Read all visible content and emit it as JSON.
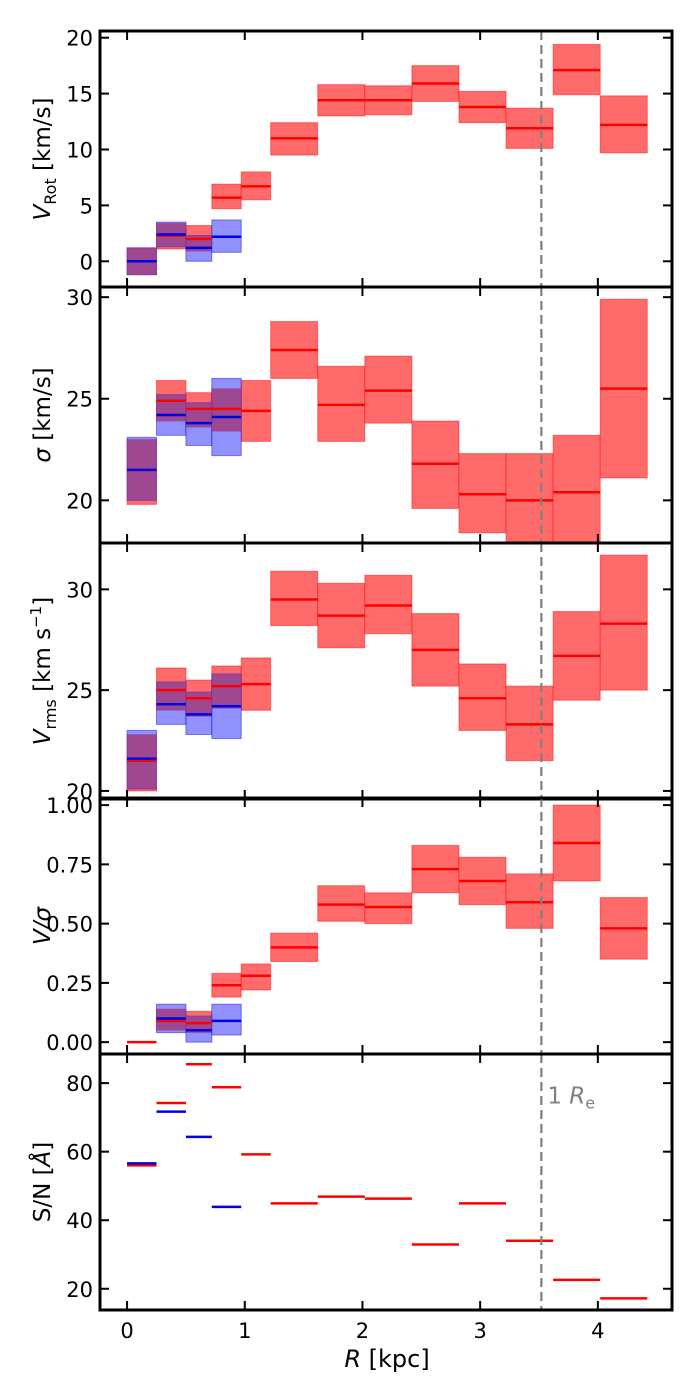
{
  "colors": {
    "red_line": "#ff0000",
    "red_fill": "#ff6a6a",
    "blue_line": "#0000e6",
    "blue_fill": "#6e6eff",
    "overlap_fill": "#a03c78",
    "re_line": "#808080"
  },
  "x_axis": {
    "label_main": "R",
    "label_unit": " [kpc]",
    "range": [
      -0.23,
      4.63
    ],
    "ticks": [
      0,
      1,
      2,
      3,
      4
    ],
    "tick_labels": [
      "0",
      "1",
      "2",
      "3",
      "4"
    ]
  },
  "re_marker": {
    "x": 3.52,
    "label_prefix": "1 ",
    "label_symbol": "R",
    "label_sub": "e"
  },
  "chart_data": [
    {
      "type": "line",
      "name": "vrot",
      "ylabel": {
        "main": "V",
        "sub": "Rot",
        "unit": " [km/s]",
        "sup": ""
      },
      "ylim": [
        -2.3,
        20.6
      ],
      "yticks": [
        0,
        5,
        10,
        15,
        20
      ],
      "ytick_labels": [
        "0",
        "5",
        "10",
        "15",
        "20"
      ],
      "series": [
        {
          "name": "red",
          "x0": [
            0,
            0.4,
            0.8,
            1.2,
            1.6,
            2.0,
            2.4,
            2.8,
            3.2,
            3.6,
            4.0
          ],
          "x1": [
            0.25,
            0.45,
            0.95,
            1.2,
            1.6,
            2.0,
            2.4,
            2.8,
            3.2,
            3.6,
            4.0
          ],
          "bins": [
            [
              0,
              0.25
            ],
            [
              0.25,
              0.5
            ],
            [
              0.5,
              0.72
            ],
            [
              0.72,
              0.97
            ],
            [
              0.97,
              1.22
            ],
            [
              1.22,
              1.62
            ],
            [
              1.62,
              2.02
            ],
            [
              2.02,
              2.42
            ],
            [
              2.42,
              2.82
            ],
            [
              2.82,
              3.22
            ],
            [
              3.22,
              3.62
            ],
            [
              3.62,
              4.02
            ],
            [
              4.02,
              4.42
            ]
          ],
          "values": [
            0,
            2.3,
            2.0,
            5.7,
            6.7,
            11.0,
            14.4,
            14.4,
            15.9,
            13.8,
            11.9,
            17.1,
            12.2
          ],
          "lower": [
            -1.2,
            1.1,
            0.9,
            4.7,
            5.5,
            9.5,
            13.0,
            13.1,
            14.3,
            12.4,
            10.1,
            14.9,
            9.7
          ],
          "upper": [
            1.2,
            3.4,
            3.2,
            6.9,
            8.0,
            12.4,
            15.8,
            15.7,
            17.5,
            15.2,
            13.7,
            19.4,
            14.8
          ]
        },
        {
          "name": "blue",
          "bins": [
            [
              0,
              0.25
            ],
            [
              0.25,
              0.5
            ],
            [
              0.5,
              0.72
            ],
            [
              0.72,
              0.97
            ]
          ],
          "values": [
            0,
            2.4,
            1.2,
            2.2
          ],
          "lower": [
            -1.2,
            1.3,
            0.0,
            0.8
          ],
          "upper": [
            1.2,
            3.5,
            2.3,
            3.7
          ]
        }
      ]
    },
    {
      "type": "line",
      "name": "sigma",
      "ylabel": {
        "main": "σ",
        "sub": "",
        "unit": " [km/s]",
        "sup": ""
      },
      "ylim": [
        17.9,
        30.5
      ],
      "yticks": [
        20,
        25,
        30
      ],
      "ytick_labels": [
        "20",
        "25",
        "30"
      ],
      "series": [
        {
          "name": "red",
          "bins": [
            [
              0,
              0.25
            ],
            [
              0.25,
              0.5
            ],
            [
              0.5,
              0.72
            ],
            [
              0.72,
              0.97
            ],
            [
              0.97,
              1.22
            ],
            [
              1.22,
              1.62
            ],
            [
              1.62,
              2.02
            ],
            [
              2.02,
              2.42
            ],
            [
              2.42,
              2.82
            ],
            [
              2.82,
              3.22
            ],
            [
              3.22,
              3.62
            ],
            [
              3.62,
              4.02
            ],
            [
              4.02,
              4.42
            ]
          ],
          "values": [
            21.5,
            24.9,
            24.5,
            24.5,
            24.4,
            27.4,
            24.7,
            25.4,
            21.8,
            20.3,
            20.0,
            20.4,
            25.5
          ],
          "lower": [
            19.8,
            23.9,
            23.6,
            23.4,
            22.9,
            26.0,
            22.9,
            23.8,
            19.6,
            18.4,
            17.9,
            17.9,
            21.1
          ],
          "upper": [
            23.0,
            25.9,
            25.3,
            25.5,
            25.9,
            28.8,
            26.6,
            27.1,
            23.9,
            22.3,
            22.3,
            23.2,
            29.9
          ]
        },
        {
          "name": "blue",
          "bins": [
            [
              0,
              0.25
            ],
            [
              0.25,
              0.5
            ],
            [
              0.5,
              0.72
            ],
            [
              0.72,
              0.97
            ]
          ],
          "values": [
            21.5,
            24.2,
            23.8,
            24.1
          ],
          "lower": [
            20.0,
            23.2,
            22.7,
            22.2
          ],
          "upper": [
            23.1,
            25.2,
            24.8,
            26.0
          ]
        }
      ]
    },
    {
      "type": "line",
      "name": "vrms",
      "ylabel": {
        "main": "V",
        "sub": "rms",
        "unit": " [km s",
        "sup": "−1",
        "tail": "]"
      },
      "ylim": [
        19.6,
        32.3
      ],
      "yticks": [
        20,
        25,
        30
      ],
      "ytick_labels": [
        "20",
        "25",
        "30"
      ],
      "series": [
        {
          "name": "red",
          "bins": [
            [
              0,
              0.25
            ],
            [
              0.25,
              0.5
            ],
            [
              0.5,
              0.72
            ],
            [
              0.72,
              0.97
            ],
            [
              0.97,
              1.22
            ],
            [
              1.22,
              1.62
            ],
            [
              1.62,
              2.02
            ],
            [
              2.02,
              2.42
            ],
            [
              2.42,
              2.82
            ],
            [
              2.82,
              3.22
            ],
            [
              3.22,
              3.62
            ],
            [
              3.62,
              4.02
            ],
            [
              4.02,
              4.42
            ]
          ],
          "values": [
            21.5,
            25.0,
            24.6,
            25.2,
            25.3,
            29.5,
            28.7,
            29.2,
            27.0,
            24.6,
            23.3,
            26.7,
            28.3
          ],
          "lower": [
            20.0,
            24.0,
            23.7,
            24.1,
            24.0,
            28.2,
            27.1,
            27.8,
            25.2,
            23.0,
            21.5,
            24.5,
            25.0
          ],
          "upper": [
            22.8,
            26.1,
            25.5,
            26.2,
            26.6,
            30.9,
            30.3,
            30.7,
            28.8,
            26.3,
            25.2,
            28.9,
            31.7
          ]
        },
        {
          "name": "blue",
          "bins": [
            [
              0,
              0.25
            ],
            [
              0.25,
              0.5
            ],
            [
              0.5,
              0.72
            ],
            [
              0.72,
              0.97
            ]
          ],
          "values": [
            21.6,
            24.3,
            23.8,
            24.2
          ],
          "lower": [
            20.1,
            23.3,
            22.8,
            22.6
          ],
          "upper": [
            23.0,
            25.4,
            24.9,
            25.8
          ]
        }
      ]
    },
    {
      "type": "line",
      "name": "vsigma",
      "ylabel": {
        "main": "V/σ",
        "sub": "",
        "unit": "",
        "sup": ""
      },
      "ylim": [
        -0.05,
        1.03
      ],
      "yticks": [
        0.0,
        0.25,
        0.5,
        0.75,
        1.0
      ],
      "ytick_labels": [
        "0.00",
        "0.25",
        "0.50",
        "0.75",
        "1.00"
      ],
      "series": [
        {
          "name": "red",
          "bins": [
            [
              0,
              0.25
            ],
            [
              0.25,
              0.5
            ],
            [
              0.5,
              0.72
            ],
            [
              0.72,
              0.97
            ],
            [
              0.97,
              1.22
            ],
            [
              1.22,
              1.62
            ],
            [
              1.62,
              2.02
            ],
            [
              2.02,
              2.42
            ],
            [
              2.42,
              2.82
            ],
            [
              2.82,
              3.22
            ],
            [
              3.22,
              3.62
            ],
            [
              3.62,
              4.02
            ],
            [
              4.02,
              4.42
            ]
          ],
          "values": [
            0.0,
            0.09,
            0.08,
            0.24,
            0.28,
            0.4,
            0.58,
            0.57,
            0.73,
            0.68,
            0.59,
            0.84,
            0.48
          ],
          "lower": [
            null,
            0.05,
            0.04,
            0.19,
            0.22,
            0.34,
            0.51,
            0.5,
            0.63,
            0.58,
            0.48,
            0.68,
            0.35
          ],
          "upper": [
            null,
            0.14,
            0.13,
            0.29,
            0.33,
            0.46,
            0.66,
            0.63,
            0.83,
            0.78,
            0.71,
            1.0,
            0.61
          ]
        },
        {
          "name": "blue",
          "bins": [
            [
              0.25,
              0.5
            ],
            [
              0.5,
              0.72
            ],
            [
              0.72,
              0.97
            ]
          ],
          "values": [
            0.1,
            0.05,
            0.09
          ],
          "lower": [
            0.04,
            0.0,
            0.03
          ],
          "upper": [
            0.16,
            0.11,
            0.16
          ]
        }
      ]
    },
    {
      "type": "line",
      "name": "sn",
      "ylabel": {
        "main": "S/N [",
        "sub": "",
        "unit": "",
        "sup": "",
        "angstrom": "Å",
        "tail": "]"
      },
      "ylim": [
        13.8,
        88.5
      ],
      "yticks": [
        20,
        40,
        60,
        80
      ],
      "ytick_labels": [
        "20",
        "40",
        "60",
        "80"
      ],
      "series": [
        {
          "name": "red",
          "bins": [
            [
              0,
              0.25
            ],
            [
              0.25,
              0.5
            ],
            [
              0.5,
              0.72
            ],
            [
              0.72,
              0.97
            ],
            [
              0.97,
              1.22
            ],
            [
              1.22,
              1.62
            ],
            [
              1.62,
              2.02
            ],
            [
              2.02,
              2.42
            ],
            [
              2.42,
              2.82
            ],
            [
              2.82,
              3.22
            ],
            [
              3.22,
              3.62
            ],
            [
              3.62,
              4.02
            ],
            [
              4.02,
              4.42
            ]
          ],
          "values": [
            56.0,
            74.2,
            85.5,
            78.8,
            59.2,
            44.9,
            46.9,
            46.3,
            32.9,
            44.9,
            34.0,
            22.6,
            17.2
          ]
        },
        {
          "name": "blue",
          "bins": [
            [
              0,
              0.25
            ],
            [
              0.25,
              0.5
            ],
            [
              0.5,
              0.72
            ],
            [
              0.72,
              0.97
            ]
          ],
          "values": [
            56.6,
            71.7,
            64.3,
            43.9
          ]
        }
      ]
    }
  ]
}
